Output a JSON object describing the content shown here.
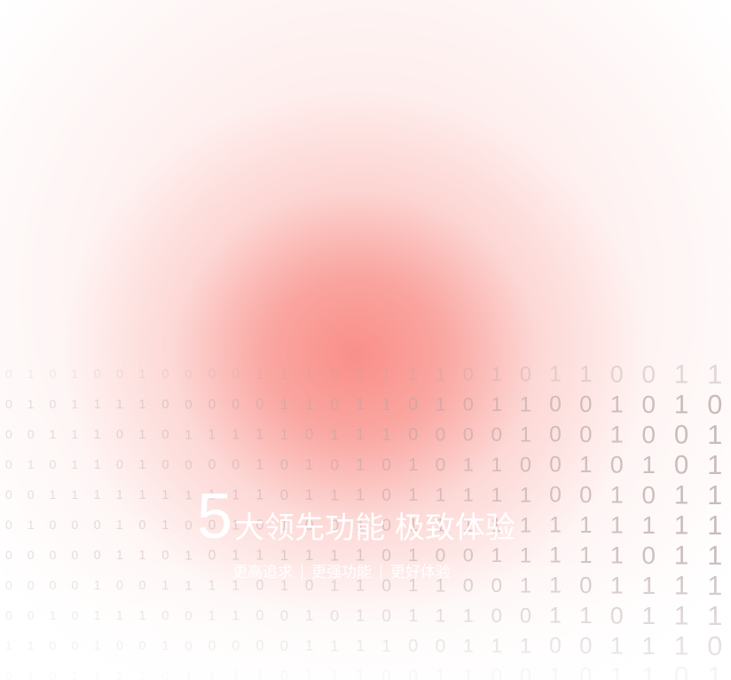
{
  "headline": {
    "number": "5",
    "title": "大领先功能 极致体验"
  },
  "features": [
    {
      "label": "更高追求"
    },
    {
      "label": "更强功能"
    },
    {
      "label": "更好体验"
    }
  ],
  "binary_rows": [
    "0101001000011100111010110011000110",
    "0101111000001101101011001010111010",
    "0011101011111011100001001001010010",
    "0101101000010101010110010101010010",
    "0011111111110111011111001011110010",
    "0100010100101001011111111111110011",
    "0000011010111111010011111011111001",
    "0000100111101011011001101111101011",
    "0010111001100101011100110111110111",
    "1100100100000111100111001110101101",
    "0101111011110111001100101101100101"
  ],
  "colors": {
    "glow": "#f98a84",
    "digits": "#b9a7a7",
    "text": "#ffffff"
  }
}
